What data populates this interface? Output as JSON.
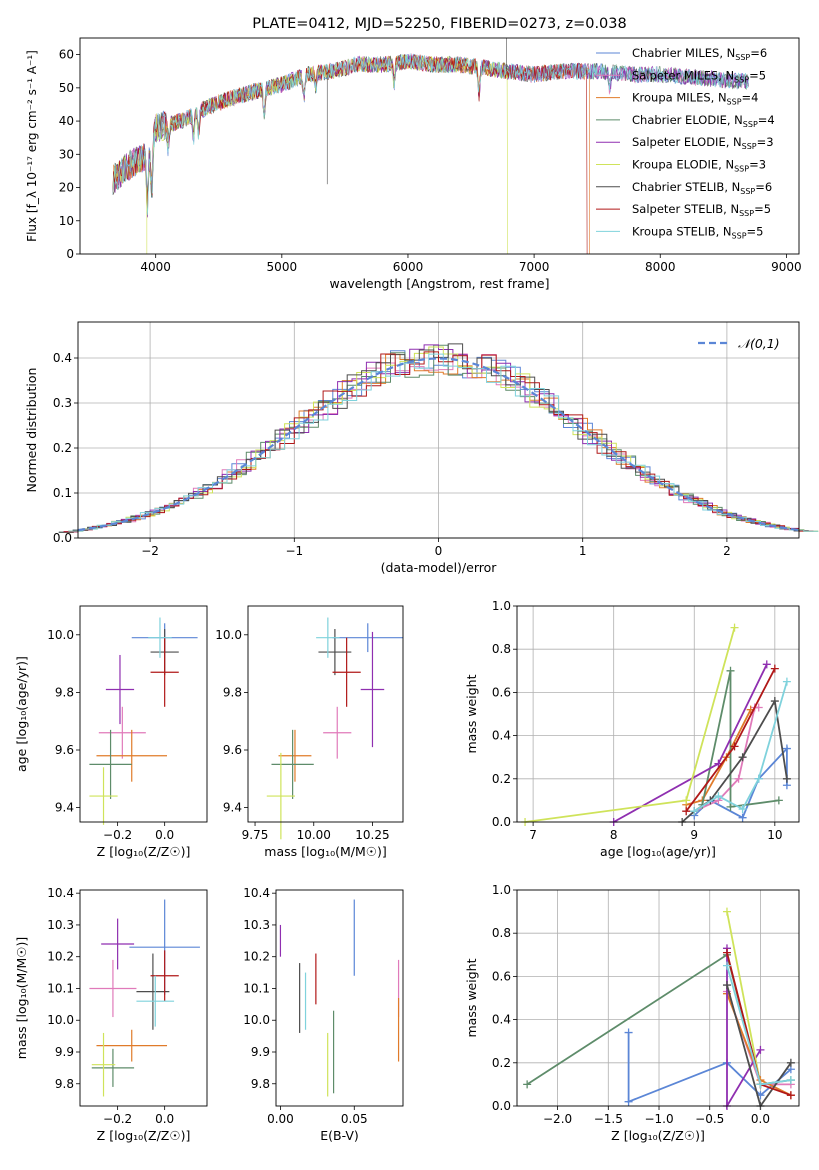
{
  "colors": [
    "#5b86d6",
    "#e07aba",
    "#e07b2a",
    "#5e8c6a",
    "#8f2fb0",
    "#cfe35a",
    "#4d4d4d",
    "#b01818",
    "#7fd2dc"
  ],
  "chart_data": [
    {
      "id": "spectrum",
      "type": "line",
      "title": "PLATE=0412, MJD=52250, FIBERID=0273, z=0.038",
      "xlabel": "wavelength [Angstrom, rest frame]",
      "ylabel": "Flux [f_λ 10⁻¹⁷ erg cm⁻² s⁻¹ A⁻¹]",
      "xlim": [
        3400,
        9100
      ],
      "ylim": [
        0,
        65
      ],
      "xticks": [
        "4000",
        "5000",
        "6000",
        "7000",
        "8000",
        "9000"
      ],
      "yticks": [
        "0",
        "10",
        "20",
        "30",
        "40",
        "50",
        "60"
      ],
      "legend_position": "right",
      "legend": [
        {
          "label": "Chabrier MILES, N",
          "sub": "SSP",
          "tail": "=6"
        },
        {
          "label": "Salpeter MILES, N",
          "sub": "SSP",
          "tail": "=5"
        },
        {
          "label": "Kroupa MILES, N",
          "sub": "SSP",
          "tail": "=4"
        },
        {
          "label": "Chabrier ELODIE, N",
          "sub": "SSP",
          "tail": "=4"
        },
        {
          "label": "Salpeter ELODIE, N",
          "sub": "SSP",
          "tail": "=3"
        },
        {
          "label": "Kroupa ELODIE, N",
          "sub": "SSP",
          "tail": "=3"
        },
        {
          "label": "Chabrier STELIB, N",
          "sub": "SSP",
          "tail": "=6"
        },
        {
          "label": "Salpeter STELIB, N",
          "sub": "SSP",
          "tail": "=5"
        },
        {
          "label": "Kroupa STELIB, N",
          "sub": "SSP",
          "tail": "=5"
        }
      ],
      "continuum": [
        [
          3650,
          22
        ],
        [
          3800,
          27
        ],
        [
          3950,
          30
        ],
        [
          4000,
          38
        ],
        [
          4200,
          40
        ],
        [
          4400,
          44
        ],
        [
          4600,
          47
        ],
        [
          4800,
          49
        ],
        [
          5000,
          51
        ],
        [
          5200,
          54
        ],
        [
          5400,
          55
        ],
        [
          5600,
          57
        ],
        [
          5800,
          57
        ],
        [
          6000,
          58
        ],
        [
          6200,
          57
        ],
        [
          6400,
          57
        ],
        [
          6600,
          56
        ],
        [
          6800,
          55
        ],
        [
          7000,
          54
        ],
        [
          7200,
          55
        ],
        [
          7500,
          55
        ],
        [
          7800,
          54
        ],
        [
          8000,
          54
        ],
        [
          8300,
          53
        ],
        [
          8600,
          52
        ],
        [
          8700,
          52
        ]
      ],
      "absorption_lines": [
        [
          3934,
          15
        ],
        [
          3968,
          14
        ],
        [
          4101,
          6
        ],
        [
          4300,
          7
        ],
        [
          4340,
          6
        ],
        [
          4861,
          7
        ],
        [
          5175,
          6
        ],
        [
          5270,
          4
        ],
        [
          5890,
          6
        ],
        [
          6563,
          8
        ],
        [
          7600,
          5
        ]
      ],
      "spikes": [
        [
          5360,
          21
        ],
        [
          6780,
          65
        ]
      ],
      "dropouts": [
        [
          3920,
          5
        ],
        [
          6790,
          7
        ],
        [
          7420,
          8
        ]
      ]
    },
    {
      "id": "residuals",
      "type": "histogram",
      "xlabel": "(data-model)/error",
      "ylabel": "Normed distribution",
      "xlim": [
        -2.5,
        2.5
      ],
      "ylim": [
        0,
        0.48
      ],
      "xticks": [
        "−2",
        "−1",
        "0",
        "1",
        "2"
      ],
      "yticks": [
        "0.0",
        "0.1",
        "0.2",
        "0.3",
        "0.4"
      ],
      "grid": true,
      "bin_width": 0.1,
      "reference": {
        "label": "𝒩(0,1)",
        "mean": 0,
        "sigma": 1
      },
      "legend_position": "top-right"
    },
    {
      "id": "age-vs-Z",
      "type": "errorbar",
      "xlabel": "Z [log₁₀(Z/Z☉)]",
      "ylabel": "age  [log₁₀(age/yr)]",
      "xlim": [
        -0.36,
        0.18
      ],
      "ylim": [
        9.35,
        10.1
      ],
      "xticks": [
        {
          "v": -0.2,
          "t": "−0.2"
        },
        {
          "v": 0,
          "t": "0.0"
        }
      ],
      "yticks": [
        {
          "v": 9.4,
          "t": "9.4"
        },
        {
          "v": 9.6,
          "t": "9.6"
        },
        {
          "v": 9.8,
          "t": "9.8"
        },
        {
          "v": 10.0,
          "t": "10.0"
        }
      ],
      "points": [
        {
          "x": 0.0,
          "y": 9.99,
          "xerr": 0.14,
          "yerr": 0.05
        },
        {
          "x": -0.18,
          "y": 9.66,
          "xerr": 0.1,
          "yerr": 0.09
        },
        {
          "x": -0.14,
          "y": 9.58,
          "xerr": 0.15,
          "yerr": 0.09
        },
        {
          "x": -0.23,
          "y": 9.55,
          "xerr": 0.09,
          "yerr": 0.12
        },
        {
          "x": -0.19,
          "y": 9.81,
          "xerr": 0.06,
          "yerr": 0.12
        },
        {
          "x": -0.26,
          "y": 9.44,
          "xerr": 0.06,
          "yerr": 0.1
        },
        {
          "x": 0.0,
          "y": 9.94,
          "xerr": 0.06,
          "yerr": 0.08
        },
        {
          "x": 0.0,
          "y": 9.87,
          "xerr": 0.06,
          "yerr": 0.12
        },
        {
          "x": -0.02,
          "y": 9.99,
          "xerr": 0.05,
          "yerr": 0.07
        }
      ]
    },
    {
      "id": "age-vs-mass",
      "type": "errorbar",
      "xlabel": "mass [log₁₀(M/M☉)]",
      "ylabel": "",
      "xlim": [
        9.72,
        10.38
      ],
      "ylim": [
        9.35,
        10.1
      ],
      "xticks": [
        {
          "v": 9.75,
          "t": "9.75"
        },
        {
          "v": 10.0,
          "t": "10.00"
        },
        {
          "v": 10.25,
          "t": "10.25"
        }
      ],
      "yticks": [
        {
          "v": 9.4,
          "t": "9.4"
        },
        {
          "v": 9.6,
          "t": "9.6"
        },
        {
          "v": 9.8,
          "t": "9.8"
        },
        {
          "v": 10.0,
          "t": "10.0"
        }
      ],
      "points": [
        {
          "x": 10.23,
          "y": 9.99,
          "xerr": 0.15,
          "yerr": 0.05
        },
        {
          "x": 10.1,
          "y": 9.66,
          "xerr": 0.06,
          "yerr": 0.09
        },
        {
          "x": 9.92,
          "y": 9.58,
          "xerr": 0.07,
          "yerr": 0.09
        },
        {
          "x": 9.91,
          "y": 9.55,
          "xerr": 0.09,
          "yerr": 0.12
        },
        {
          "x": 10.25,
          "y": 9.81,
          "xerr": 0.05,
          "yerr": 0.2
        },
        {
          "x": 9.86,
          "y": 9.44,
          "xerr": 0.06,
          "yerr": 0.15
        },
        {
          "x": 10.09,
          "y": 9.94,
          "xerr": 0.07,
          "yerr": 0.08
        },
        {
          "x": 10.14,
          "y": 9.87,
          "xerr": 0.06,
          "yerr": 0.12
        },
        {
          "x": 10.06,
          "y": 9.99,
          "xerr": 0.05,
          "yerr": 0.07
        }
      ]
    },
    {
      "id": "massweight-vs-age",
      "type": "line",
      "xlabel": "age  [log₁₀(age/yr)]",
      "ylabel": "mass weight",
      "xlim": [
        6.8,
        10.3
      ],
      "ylim": [
        0,
        1.0
      ],
      "grid": true,
      "xticks": [
        {
          "v": 7,
          "t": "7"
        },
        {
          "v": 8,
          "t": "8"
        },
        {
          "v": 9,
          "t": "9"
        },
        {
          "v": 10,
          "t": "10"
        }
      ],
      "yticks": [
        {
          "v": 0,
          "t": "0.0"
        },
        {
          "v": 0.2,
          "t": "0.2"
        },
        {
          "v": 0.4,
          "t": "0.4"
        },
        {
          "v": 0.6,
          "t": "0.6"
        },
        {
          "v": 0.8,
          "t": "0.8"
        },
        {
          "v": 1.0,
          "t": "1.0"
        }
      ],
      "series": [
        [
          [
            9.0,
            0.03
          ],
          [
            9.2,
            0.1
          ],
          [
            9.6,
            0.02
          ],
          [
            9.8,
            0.2
          ],
          [
            10.15,
            0.34
          ],
          [
            10.15,
            0.17
          ]
        ],
        [
          [
            9.0,
            0.05
          ],
          [
            9.3,
            0.1
          ],
          [
            9.55,
            0.2
          ],
          [
            9.75,
            0.53
          ],
          [
            9.8,
            0.53
          ]
        ],
        [
          [
            8.9,
            0.08
          ],
          [
            9.1,
            0.1
          ],
          [
            9.4,
            0.3
          ],
          [
            9.7,
            0.52
          ]
        ],
        [
          [
            9.1,
            0.08
          ],
          [
            9.45,
            0.7
          ],
          [
            9.45,
            0.07
          ],
          [
            10.05,
            0.1
          ]
        ],
        [
          [
            8.0,
            0.0
          ],
          [
            9.3,
            0.27
          ],
          [
            9.9,
            0.73
          ]
        ],
        [
          [
            6.9,
            0.0
          ],
          [
            8.9,
            0.1
          ],
          [
            9.5,
            0.9
          ]
        ],
        [
          [
            8.85,
            0.0
          ],
          [
            9.0,
            0.05
          ],
          [
            9.2,
            0.1
          ],
          [
            9.6,
            0.3
          ],
          [
            10.0,
            0.56
          ],
          [
            10.15,
            0.2
          ]
        ],
        [
          [
            8.9,
            0.05
          ],
          [
            9.5,
            0.35
          ],
          [
            10.0,
            0.71
          ]
        ],
        [
          [
            9.0,
            0.05
          ],
          [
            9.3,
            0.12
          ],
          [
            9.6,
            0.06
          ],
          [
            9.8,
            0.2
          ],
          [
            10.15,
            0.65
          ]
        ]
      ]
    },
    {
      "id": "mass-vs-Z",
      "type": "errorbar",
      "xlabel": "Z [log₁₀(Z/Z☉)]",
      "ylabel": "mass [log₁₀(M/M☉)]",
      "xlim": [
        -0.36,
        0.18
      ],
      "ylim": [
        9.73,
        10.41
      ],
      "xticks": [
        {
          "v": -0.2,
          "t": "−0.2"
        },
        {
          "v": 0,
          "t": "0.0"
        }
      ],
      "yticks": [
        {
          "v": 9.8,
          "t": "9.8"
        },
        {
          "v": 9.9,
          "t": "9.9"
        },
        {
          "v": 10.0,
          "t": "10.0"
        },
        {
          "v": 10.1,
          "t": "10.1"
        },
        {
          "v": 10.2,
          "t": "10.2"
        },
        {
          "v": 10.3,
          "t": "10.3"
        },
        {
          "v": 10.4,
          "t": "10.4"
        }
      ],
      "points": [
        {
          "x": 0.0,
          "y": 10.23,
          "xerr": 0.15,
          "yerr": 0.15
        },
        {
          "x": -0.22,
          "y": 10.1,
          "xerr": 0.1,
          "yerr": 0.09
        },
        {
          "x": -0.14,
          "y": 9.92,
          "xerr": 0.15,
          "yerr": 0.05
        },
        {
          "x": -0.22,
          "y": 9.85,
          "xerr": 0.09,
          "yerr": 0.06
        },
        {
          "x": -0.2,
          "y": 10.24,
          "xerr": 0.07,
          "yerr": 0.08
        },
        {
          "x": -0.26,
          "y": 9.86,
          "xerr": 0.05,
          "yerr": 0.1
        },
        {
          "x": -0.05,
          "y": 10.09,
          "xerr": 0.07,
          "yerr": 0.12
        },
        {
          "x": 0.0,
          "y": 10.14,
          "xerr": 0.06,
          "yerr": 0.08
        },
        {
          "x": -0.04,
          "y": 10.06,
          "xerr": 0.08,
          "yerr": 0.08
        }
      ]
    },
    {
      "id": "mass-vs-EBV",
      "type": "errorbar",
      "xlabel": "E(B-V)",
      "ylabel": "",
      "xlim": [
        -0.003,
        0.083
      ],
      "ylim": [
        9.73,
        10.41
      ],
      "xticks": [
        {
          "v": 0,
          "t": "0.00"
        },
        {
          "v": 0.05,
          "t": "0.05"
        }
      ],
      "yticks": [
        {
          "v": 9.8,
          "t": "9.8"
        },
        {
          "v": 9.9,
          "t": "9.9"
        },
        {
          "v": 10.0,
          "t": "10.0"
        },
        {
          "v": 10.1,
          "t": "10.1"
        },
        {
          "v": 10.2,
          "t": "10.2"
        },
        {
          "v": 10.3,
          "t": "10.3"
        },
        {
          "v": 10.4,
          "t": "10.4"
        }
      ],
      "points": [
        {
          "x": 0.05,
          "y": 10.26,
          "xerr": 0,
          "yerr": 0.12
        },
        {
          "x": 0.08,
          "y": 10.1,
          "xerr": 0,
          "yerr": 0.09
        },
        {
          "x": 0.08,
          "y": 9.97,
          "xerr": 0,
          "yerr": 0.1
        },
        {
          "x": 0.036,
          "y": 9.9,
          "xerr": 0,
          "yerr": 0.13
        },
        {
          "x": 0.0,
          "y": 10.25,
          "xerr": 0,
          "yerr": 0.05
        },
        {
          "x": 0.032,
          "y": 9.86,
          "xerr": 0,
          "yerr": 0.1
        },
        {
          "x": 0.013,
          "y": 10.07,
          "xerr": 0,
          "yerr": 0.11
        },
        {
          "x": 0.024,
          "y": 10.13,
          "xerr": 0,
          "yerr": 0.08
        },
        {
          "x": 0.017,
          "y": 10.06,
          "xerr": 0,
          "yerr": 0.09
        }
      ]
    },
    {
      "id": "massweight-vs-Z",
      "type": "line",
      "xlabel": "Z [log₁₀(Z/Z☉)]",
      "ylabel": "mass weight",
      "xlim": [
        -2.4,
        0.38
      ],
      "ylim": [
        0,
        1.0
      ],
      "grid": true,
      "xticks": [
        {
          "v": -2.0,
          "t": "−2.0"
        },
        {
          "v": -1.5,
          "t": "−1.5"
        },
        {
          "v": -1.0,
          "t": "−1.0"
        },
        {
          "v": -0.5,
          "t": "−0.5"
        },
        {
          "v": 0,
          "t": "0.0"
        }
      ],
      "yticks": [
        {
          "v": 0,
          "t": "0.0"
        },
        {
          "v": 0.2,
          "t": "0.2"
        },
        {
          "v": 0.4,
          "t": "0.4"
        },
        {
          "v": 0.6,
          "t": "0.6"
        },
        {
          "v": 0.8,
          "t": "0.8"
        },
        {
          "v": 1.0,
          "t": "1.0"
        }
      ],
      "series": [
        [
          [
            -1.3,
            0.34
          ],
          [
            -1.3,
            0.02
          ],
          [
            -0.33,
            0.2
          ],
          [
            0.0,
            0.05
          ],
          [
            0.3,
            0.17
          ]
        ],
        [
          [
            -0.33,
            0.53
          ],
          [
            0.0,
            0.1
          ],
          [
            0.3,
            0.1
          ]
        ],
        [
          [
            -0.33,
            0.52
          ],
          [
            0.0,
            0.12
          ],
          [
            0.3,
            0.05
          ]
        ],
        [
          [
            -2.3,
            0.1
          ],
          [
            -0.33,
            0.7
          ],
          [
            0.0,
            0.1
          ],
          [
            0.3,
            0.12
          ]
        ],
        [
          [
            -0.33,
            0.73
          ],
          [
            -0.33,
            0.0
          ],
          [
            0.0,
            0.26
          ]
        ],
        [
          [
            -0.33,
            0.9
          ],
          [
            0.0,
            0.1
          ]
        ],
        [
          [
            -0.33,
            0.56
          ],
          [
            0.0,
            0.0
          ],
          [
            0.3,
            0.2
          ]
        ],
        [
          [
            -0.33,
            0.71
          ],
          [
            0.0,
            0.1
          ],
          [
            0.3,
            0.05
          ]
        ],
        [
          [
            -0.33,
            0.65
          ],
          [
            0.0,
            0.1
          ],
          [
            0.3,
            0.12
          ]
        ]
      ]
    }
  ]
}
